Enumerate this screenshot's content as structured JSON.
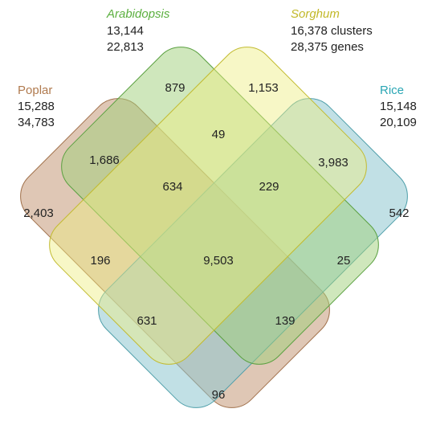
{
  "sets": [
    {
      "name": "Poplar",
      "lines": [
        "15,288",
        "34,783"
      ]
    },
    {
      "name": "Arabidopsis",
      "lines": [
        "13,144",
        "22,813"
      ]
    },
    {
      "name": "Sorghum",
      "lines": [
        "16,378 clusters",
        "28,375 genes"
      ]
    },
    {
      "name": "Rice",
      "lines": [
        "15,148",
        "20,109"
      ]
    }
  ],
  "regions": [
    "879",
    "1,153",
    "49",
    "1,686",
    "3,983",
    "634",
    "229",
    "2,403",
    "542",
    "196",
    "9,503",
    "25",
    "631",
    "139",
    "96"
  ]
}
